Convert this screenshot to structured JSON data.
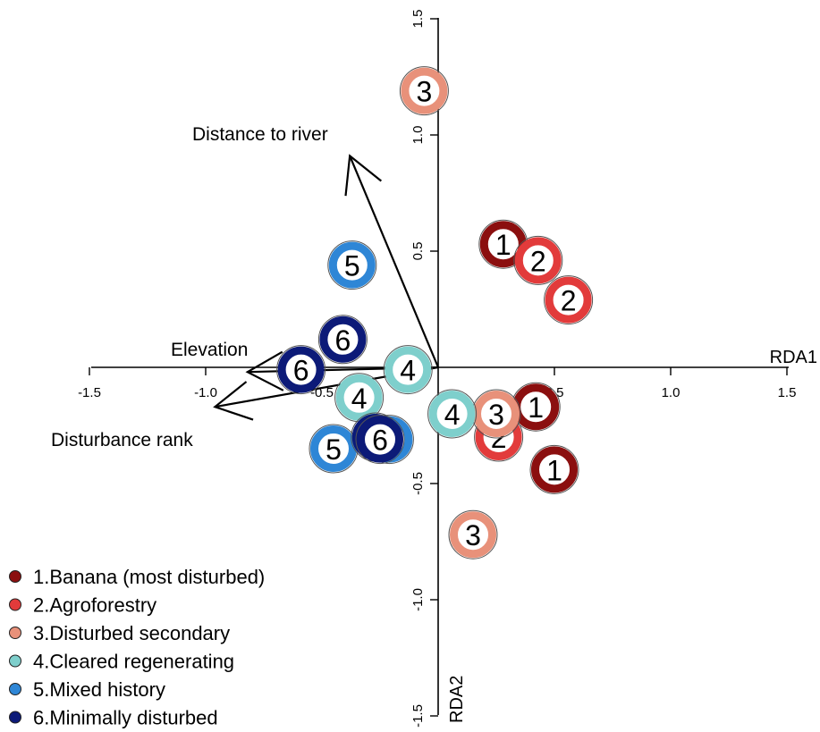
{
  "chart_data": {
    "type": "scatter",
    "title": "",
    "xlabel": "RDA1",
    "ylabel": "RDA2",
    "xlim": [
      -1.5,
      1.5
    ],
    "ylim": [
      -1.5,
      1.5
    ],
    "x_ticks": [
      "-1.5",
      "-1.0",
      "-0.5",
      "0.5",
      "1.0",
      "1.5"
    ],
    "y_ticks": [
      "1.5",
      "1.0",
      "0.5",
      "-0.5",
      "-1.0",
      "-1.5"
    ],
    "x_tick_values": [
      -1.5,
      -1.0,
      -0.5,
      0.5,
      1.0,
      1.5
    ],
    "y_tick_values": [
      1.5,
      1.0,
      0.5,
      -0.5,
      -1.0,
      -1.5
    ],
    "grid": false,
    "legend_position": "bottom-left",
    "series": [
      {
        "name": "1.Banana (most disturbed)",
        "label": "1",
        "color": "#8b0f0f",
        "points": [
          [
            0.28,
            0.53
          ],
          [
            0.42,
            -0.17
          ],
          [
            0.5,
            -0.44
          ]
        ]
      },
      {
        "name": "2.Agroforestry",
        "label": "2",
        "color": "#e23b3b",
        "points": [
          [
            0.43,
            0.46
          ],
          [
            0.56,
            0.29
          ],
          [
            0.26,
            -0.3
          ]
        ]
      },
      {
        "name": "3.Disturbed secondary",
        "label": "3",
        "color": "#e8917a",
        "points": [
          [
            -0.06,
            1.19
          ],
          [
            0.25,
            -0.2
          ],
          [
            0.15,
            -0.72
          ]
        ]
      },
      {
        "name": "4.Cleared regenerating",
        "label": "4",
        "color": "#7ecfcc",
        "points": [
          [
            -0.13,
            -0.01
          ],
          [
            -0.34,
            -0.13
          ],
          [
            0.06,
            -0.2
          ]
        ]
      },
      {
        "name": "5.Mixed history",
        "label": "5",
        "color": "#2e86d6",
        "points": [
          [
            -0.37,
            0.44
          ],
          [
            -0.45,
            -0.35
          ],
          [
            -0.21,
            -0.31
          ]
        ]
      },
      {
        "name": "6.Minimally disturbed",
        "label": "6",
        "color": "#0c1a78",
        "points": [
          [
            -0.41,
            0.12
          ],
          [
            -0.59,
            -0.01
          ],
          [
            -0.27,
            -0.3
          ],
          [
            -0.25,
            -0.31
          ]
        ]
      }
    ],
    "vectors": [
      {
        "name": "Distance to river",
        "x": -0.38,
        "y": 0.91
      },
      {
        "name": "Elevation",
        "x": -0.82,
        "y": -0.02
      },
      {
        "name": "Disturbance rank",
        "x": -0.96,
        "y": -0.17
      }
    ]
  }
}
